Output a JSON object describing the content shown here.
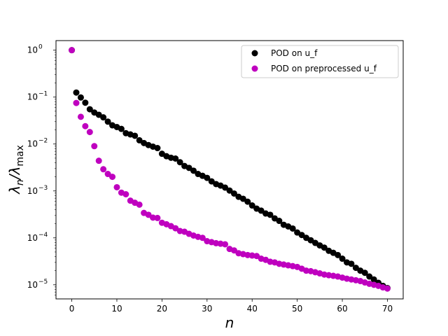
{
  "chart_data": {
    "type": "scatter",
    "xlabel": "n",
    "ylabel": {
      "main": "λ",
      "main_sub": "n",
      "sep": "/λ",
      "sep_sub": "max"
    },
    "xlim": [
      -3.5,
      73.5
    ],
    "ylim": [
      5e-06,
      1.6
    ],
    "yscale": "log",
    "grid": false,
    "legend_position": "top-right",
    "x_ticks": [
      {
        "value": 0,
        "label": "0"
      },
      {
        "value": 10,
        "label": "10"
      },
      {
        "value": 20,
        "label": "20"
      },
      {
        "value": 30,
        "label": "30"
      },
      {
        "value": 40,
        "label": "40"
      },
      {
        "value": 50,
        "label": "50"
      },
      {
        "value": 60,
        "label": "60"
      },
      {
        "value": 70,
        "label": "70"
      }
    ],
    "y_ticks": [
      {
        "value": 1,
        "base": "10",
        "exp": "0"
      },
      {
        "value": 0.1,
        "base": "10",
        "exp": "−1"
      },
      {
        "value": 0.01,
        "base": "10",
        "exp": "−2"
      },
      {
        "value": 0.001,
        "base": "10",
        "exp": "−3"
      },
      {
        "value": 0.0001,
        "base": "10",
        "exp": "−4"
      },
      {
        "value": 1e-05,
        "base": "10",
        "exp": "−5"
      }
    ],
    "series": [
      {
        "name": "POD on u_f",
        "color": "#000000",
        "x": [
          0,
          1,
          2,
          3,
          4,
          5,
          6,
          7,
          8,
          9,
          10,
          11,
          12,
          13,
          14,
          15,
          16,
          17,
          18,
          19,
          20,
          21,
          22,
          23,
          24,
          25,
          26,
          27,
          28,
          29,
          30,
          31,
          32,
          33,
          34,
          35,
          36,
          37,
          38,
          39,
          40,
          41,
          42,
          43,
          44,
          45,
          46,
          47,
          48,
          49,
          50,
          51,
          52,
          53,
          54,
          55,
          56,
          57,
          58,
          59,
          60,
          61,
          62,
          63,
          64,
          65,
          66,
          67,
          68,
          69,
          70
        ],
        "y": [
          1.0,
          0.125,
          0.098,
          0.076,
          0.055,
          0.047,
          0.042,
          0.037,
          0.03,
          0.025,
          0.023,
          0.021,
          0.017,
          0.016,
          0.015,
          0.012,
          0.0105,
          0.0095,
          0.0088,
          0.0082,
          0.0062,
          0.0055,
          0.0051,
          0.0049,
          0.0041,
          0.0034,
          0.0031,
          0.0027,
          0.0023,
          0.0021,
          0.0019,
          0.0016,
          0.0014,
          0.0013,
          0.00118,
          0.00102,
          0.00088,
          0.00075,
          0.00068,
          0.00059,
          0.00049,
          0.00042,
          0.00038,
          0.00033,
          0.00031,
          0.00026,
          0.00023,
          0.00019,
          0.000175,
          0.000158,
          0.00013,
          0.000115,
          0.0001,
          8.9e-05,
          7.8e-05,
          6.9e-05,
          6.2e-05,
          5.3e-05,
          4.8e-05,
          4.3e-05,
          3.6e-05,
          3e-05,
          2.8e-05,
          2.3e-05,
          2e-05,
          1.8e-05,
          1.5e-05,
          1.3e-05,
          1.1e-05,
          9.5e-06,
          8.5e-06
        ]
      },
      {
        "name": "POD on preprocessed u_f",
        "color": "#bf00bf",
        "x": [
          0,
          1,
          2,
          3,
          4,
          5,
          6,
          7,
          8,
          9,
          10,
          11,
          12,
          13,
          14,
          15,
          16,
          17,
          18,
          19,
          20,
          21,
          22,
          23,
          24,
          25,
          26,
          27,
          28,
          29,
          30,
          31,
          32,
          33,
          34,
          35,
          36,
          37,
          38,
          39,
          40,
          41,
          42,
          43,
          44,
          45,
          46,
          47,
          48,
          49,
          50,
          51,
          52,
          53,
          54,
          55,
          56,
          57,
          58,
          59,
          60,
          61,
          62,
          63,
          64,
          65,
          66,
          67,
          68,
          69,
          70
        ],
        "y": [
          1.0,
          0.075,
          0.038,
          0.024,
          0.018,
          0.009,
          0.0044,
          0.0029,
          0.0023,
          0.002,
          0.0012,
          0.00092,
          0.00085,
          0.00062,
          0.00056,
          0.00051,
          0.00034,
          0.00031,
          0.00027,
          0.000265,
          0.00021,
          0.000195,
          0.000178,
          0.00016,
          0.00014,
          0.000135,
          0.000122,
          0.000112,
          0.000105,
          0.0001,
          8.5e-05,
          8.1e-05,
          7.7e-05,
          7.5e-05,
          7.3e-05,
          5.8e-05,
          5.4e-05,
          4.7e-05,
          4.5e-05,
          4.3e-05,
          4.2e-05,
          4.1e-05,
          3.6e-05,
          3.4e-05,
          3.1e-05,
          3e-05,
          2.8e-05,
          2.7e-05,
          2.6e-05,
          2.5e-05,
          2.4e-05,
          2.2e-05,
          2e-05,
          1.95e-05,
          1.85e-05,
          1.75e-05,
          1.65e-05,
          1.6e-05,
          1.55e-05,
          1.5e-05,
          1.42e-05,
          1.35e-05,
          1.3e-05,
          1.25e-05,
          1.2e-05,
          1.12e-05,
          1.05e-05,
          1e-05,
          9.5e-06,
          8.8e-06,
          8.3e-06
        ]
      }
    ]
  }
}
